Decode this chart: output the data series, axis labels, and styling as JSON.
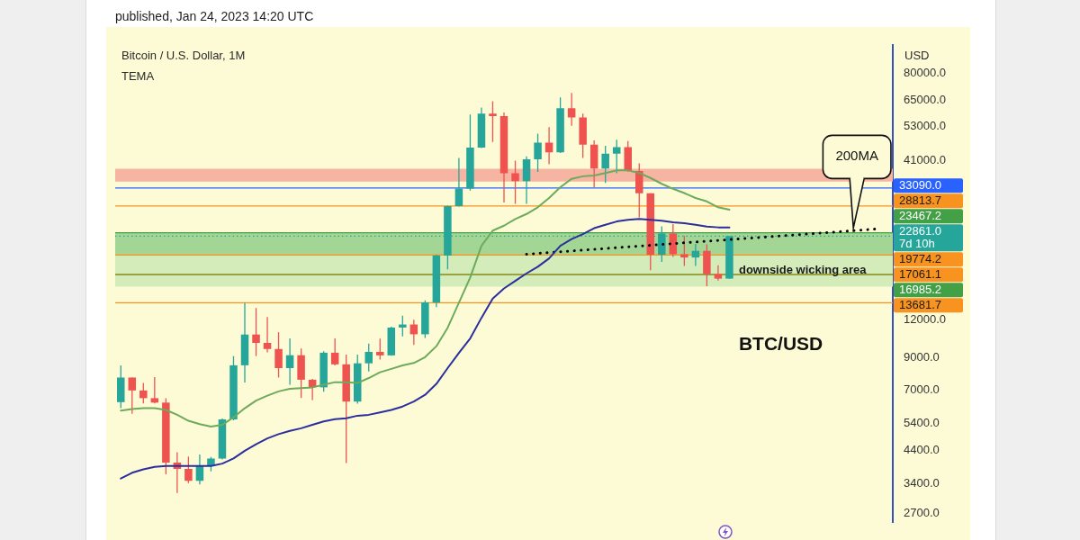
{
  "chart_data": {
    "type": "candlestick",
    "title": "Bitcoin / U.S. Dollar, 1M",
    "subtitle": "TEMA",
    "ylabel": "USD",
    "annotations": [
      "published, Jan 24, 2023 14:20 UTC",
      "BTC/USD"
    ],
    "categories": [
      null,
      null,
      null,
      null,
      null,
      null,
      null,
      null,
      null,
      null,
      null,
      null,
      null,
      null,
      null,
      null,
      null,
      null,
      null,
      null,
      null,
      null,
      null,
      null,
      null,
      null,
      null,
      null,
      null,
      null,
      null,
      null,
      null,
      null,
      null,
      null,
      null,
      null,
      null,
      null,
      null,
      null,
      null,
      null,
      null,
      null,
      null,
      null,
      null,
      null,
      null,
      null,
      null,
      null,
      null,
      null,
      null,
      null,
      null,
      null,
      null,
      null,
      null,
      null,
      null,
      null,
      null,
      null,
      null
    ],
    "ohlc": [
      [
        6370,
        8460,
        6080,
        7700
      ],
      [
        7700,
        7700,
        5830,
        6970
      ],
      [
        6970,
        7380,
        6310,
        6570
      ],
      [
        6570,
        7730,
        6310,
        6350
      ],
      [
        6350,
        6570,
        3660,
        4000
      ],
      [
        4000,
        4330,
        3170,
        3810
      ],
      [
        3810,
        4190,
        3420,
        3480
      ],
      [
        3480,
        4260,
        3380,
        3890
      ],
      [
        3890,
        4180,
        3740,
        4130
      ],
      [
        4130,
        5620,
        4100,
        5580
      ],
      [
        5580,
        9080,
        5540,
        8460
      ],
      [
        8460,
        13670,
        7410,
        10720
      ],
      [
        10720,
        13150,
        9080,
        10050
      ],
      [
        10050,
        12270,
        9340,
        9590
      ],
      [
        9590,
        10910,
        7700,
        8280
      ],
      [
        8280,
        10400,
        7280,
        9140
      ],
      [
        9140,
        9630,
        6580,
        7570
      ],
      [
        7570,
        7620,
        6470,
        7140
      ],
      [
        7140,
        9430,
        6900,
        9320
      ],
      [
        9320,
        10400,
        8460,
        8520
      ],
      [
        8520,
        9180,
        3990,
        6400
      ],
      [
        6400,
        9180,
        6300,
        8590
      ],
      [
        8590,
        10000,
        8070,
        9380
      ],
      [
        9380,
        10380,
        8840,
        9130
      ],
      [
        9130,
        11380,
        9100,
        11310
      ],
      [
        11310,
        12400,
        10560,
        11580
      ],
      [
        11580,
        12010,
        9900,
        10740
      ],
      [
        10740,
        13950,
        10450,
        13720
      ],
      [
        13720,
        19800,
        13230,
        19680
      ],
      [
        19680,
        28900,
        17690,
        28780
      ],
      [
        28780,
        41740,
        28700,
        32940
      ],
      [
        32940,
        58240,
        32460,
        45170
      ],
      [
        45170,
        61440,
        45000,
        58610
      ],
      [
        58610,
        64540,
        47180,
        57590
      ],
      [
        57590,
        59210,
        29610,
        37100
      ],
      [
        37100,
        40860,
        29280,
        34910
      ],
      [
        34910,
        42200,
        29280,
        41280
      ],
      [
        41280,
        50300,
        37480,
        46960
      ],
      [
        46960,
        52880,
        39720,
        43590
      ],
      [
        43590,
        66480,
        43310,
        61160
      ],
      [
        61160,
        68830,
        53430,
        56960
      ],
      [
        56960,
        58610,
        41740,
        46180
      ],
      [
        46180,
        47700,
        33160,
        38460
      ],
      [
        38460,
        45760,
        34400,
        43110
      ],
      [
        43110,
        48010,
        37100,
        45290
      ],
      [
        45290,
        47490,
        37480,
        37720
      ],
      [
        37720,
        39980,
        26420,
        31780
      ],
      [
        31780,
        31780,
        17570,
        19810
      ],
      [
        19810,
        24660,
        18740,
        23320
      ],
      [
        23320,
        25090,
        19480,
        19890
      ],
      [
        19890,
        22880,
        18180,
        19390
      ],
      [
        19390,
        21540,
        18180,
        20410
      ],
      [
        20410,
        21460,
        15550,
        17050
      ],
      [
        17050,
        18260,
        16230,
        16480
      ],
      [
        16480,
        22861,
        16480,
        22861
      ],
      null,
      null,
      null,
      null,
      null,
      null,
      null,
      null,
      null,
      null,
      null,
      null,
      null,
      null
    ],
    "colors": [
      "#26a69a",
      "#ef5350",
      "#ef5350",
      "#ef5350",
      "#ef5350",
      "#ef5350",
      "#ef5350",
      "#26a69a",
      "#26a69a",
      "#26a69a",
      "#26a69a",
      "#26a69a",
      "#ef5350",
      "#ef5350",
      "#ef5350",
      "#26a69a",
      "#ef5350",
      "#ef5350",
      "#26a69a",
      "#ef5350",
      "#ef5350",
      "#26a69a",
      "#26a69a",
      "#ef5350",
      "#26a69a",
      "#26a69a",
      "#ef5350",
      "#26a69a",
      "#26a69a",
      "#26a69a",
      "#26a69a",
      "#26a69a",
      "#26a69a",
      "#ef5350",
      "#ef5350",
      "#ef5350",
      "#26a69a",
      "#26a69a",
      "#ef5350",
      "#26a69a",
      "#ef5350",
      "#ef5350",
      "#ef5350",
      "#26a69a",
      "#26a69a",
      "#ef5350",
      "#ef5350",
      "#ef5350",
      "#26a69a",
      "#ef5350",
      "#ef5350",
      "#26a69a",
      "#ef5350",
      "#ef5350",
      "#26a69a",
      null,
      null,
      null,
      null,
      null,
      null,
      null,
      null,
      null,
      null,
      null,
      null,
      null,
      null
    ],
    "series": [
      {
        "type": "line",
        "color": "#6daa5c",
        "values": [
          5970,
          6040,
          6080,
          6080,
          6000,
          5780,
          5520,
          5380,
          5280,
          5350,
          5670,
          6080,
          6450,
          6700,
          6920,
          7060,
          7100,
          7140,
          7280,
          7430,
          7430,
          7380,
          7670,
          8020,
          8230,
          8450,
          8610,
          9010,
          9800,
          11290,
          13690,
          16610,
          21220,
          23840,
          24770,
          26080,
          27100,
          28530,
          30640,
          33310,
          35530,
          36220,
          36450,
          37160,
          37890,
          37890,
          37160,
          35750,
          34180,
          32890,
          31840,
          30640,
          29850,
          28530,
          27990,
          null,
          null,
          null,
          null,
          null,
          null,
          null,
          null,
          null,
          null,
          null,
          null,
          null,
          null
        ]
      },
      {
        "type": "line",
        "color": "#2b2f9e",
        "values": [
          3540,
          3700,
          3800,
          3870,
          3900,
          3900,
          3900,
          3900,
          3900,
          3970,
          4130,
          4380,
          4610,
          4820,
          4980,
          5110,
          5210,
          5350,
          5490,
          5590,
          5630,
          5740,
          5780,
          5890,
          6000,
          6160,
          6400,
          6740,
          7330,
          8280,
          9300,
          10400,
          12190,
          14140,
          15280,
          16190,
          17160,
          18060,
          19260,
          21220,
          22340,
          23220,
          24290,
          24930,
          25580,
          25910,
          26080,
          25910,
          25740,
          25410,
          25250,
          24930,
          24610,
          24450,
          24450,
          null,
          null,
          null,
          null,
          null,
          null,
          null,
          null,
          null,
          null,
          null,
          null,
          null,
          null
        ]
      },
      {
        "type": "line",
        "name": "200MA",
        "color": "#000000",
        "line_style": "dotted",
        "values": [
          null,
          null,
          null,
          null,
          null,
          null,
          null,
          null,
          null,
          null,
          null,
          null,
          null,
          null,
          null,
          null,
          null,
          null,
          null,
          null,
          null,
          null,
          null,
          null,
          null,
          null,
          null,
          null,
          null,
          null,
          null,
          null,
          null,
          null,
          null,
          null,
          19890,
          20010,
          20140,
          20270,
          20390,
          20520,
          20650,
          20780,
          20910,
          21040,
          21170,
          21300,
          21440,
          21570,
          21710,
          21840,
          21980,
          22110,
          22250,
          22390,
          22530,
          22670,
          22810,
          22960,
          23100,
          23240,
          23390,
          23540,
          23680,
          23830,
          23990,
          24140,
          null
        ]
      }
    ],
    "ref_lines": [
      {
        "axis": "y",
        "value": 33090.0,
        "label": "33090.0",
        "color": "#2962ff"
      },
      {
        "axis": "y",
        "value": 28813.7,
        "label": "28813.7",
        "color": "#f7931e"
      },
      {
        "axis": "y",
        "value": 23467.2,
        "label": "23467.2",
        "color": "#43a047"
      },
      {
        "axis": "y",
        "value": 22861.0,
        "label": "22861.0\n7d 10h",
        "color": "#26a69a",
        "line_style": "dotted"
      },
      {
        "axis": "y",
        "value": 19774.2,
        "label": "19774.2",
        "color": "#f7931e"
      },
      {
        "axis": "y",
        "value": 17061.1,
        "label": "17061.1",
        "color": "#f7931e"
      },
      {
        "axis": "y",
        "value": 16985.2,
        "label": "16985.2",
        "color": "#43a047"
      },
      {
        "axis": "y",
        "value": 13681.7,
        "label": "13681.7",
        "color": "#f7931e"
      }
    ],
    "bands": [
      {
        "axis": "y",
        "from": 34800,
        "to": 38400,
        "color": "#f6b5a2"
      },
      {
        "axis": "y",
        "from": 19774.2,
        "to": 23467.2,
        "color": "#a3d694"
      },
      {
        "axis": "y",
        "from": 15500,
        "to": 19774.2,
        "label": "downside wicking area",
        "color": "#d3ecba"
      }
    ],
    "log": true,
    "ylim": [
      2530,
      99600
    ],
    "yticks": [
      {
        "value": 2700,
        "label": "2700.0"
      },
      {
        "value": 3400,
        "label": "3400.0"
      },
      {
        "value": 4400,
        "label": "4400.0"
      },
      {
        "value": 5400,
        "label": "5400.0"
      },
      {
        "value": 7000,
        "label": "7000.0"
      },
      {
        "value": 9000,
        "label": "9000.0"
      },
      {
        "value": 12000,
        "label": "12000.0"
      },
      {
        "value": 41000,
        "label": "41000.0"
      },
      {
        "value": 53000,
        "label": "53000.0"
      },
      {
        "value": 65000,
        "label": "65000.0"
      },
      {
        "value": 80000,
        "label": "80000.0"
      }
    ]
  }
}
